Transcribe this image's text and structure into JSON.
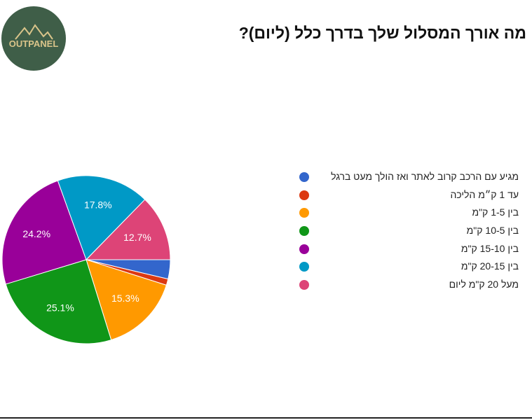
{
  "logo": {
    "text": "OUTPANEL"
  },
  "chart_data": {
    "type": "pie",
    "title": "מה אורך המסלול שלך בדרך כלל (ליום)?",
    "categories": [
      "מגיע עם הרכב קרוב לאתר ואז הולך מעט ברגל",
      "עד 1 ק״מ הליכה",
      "בין 1-5 ק\"מ",
      "בין 10-5 ק\"מ",
      "בין 15-10 ק\"מ",
      "בין 20-15 ק\"מ",
      "מעל 20 ק\"מ ליום"
    ],
    "values": [
      3.7,
      1.2,
      15.3,
      25.1,
      24.2,
      17.8,
      12.7
    ],
    "value_labels": [
      null,
      null,
      "15.3%",
      "25.1%",
      "24.2%",
      "17.8%",
      "12.7%"
    ],
    "colors": [
      "#3366cc",
      "#dc3912",
      "#ff9900",
      "#109618",
      "#990099",
      "#0099c6",
      "#dd4477"
    ]
  }
}
